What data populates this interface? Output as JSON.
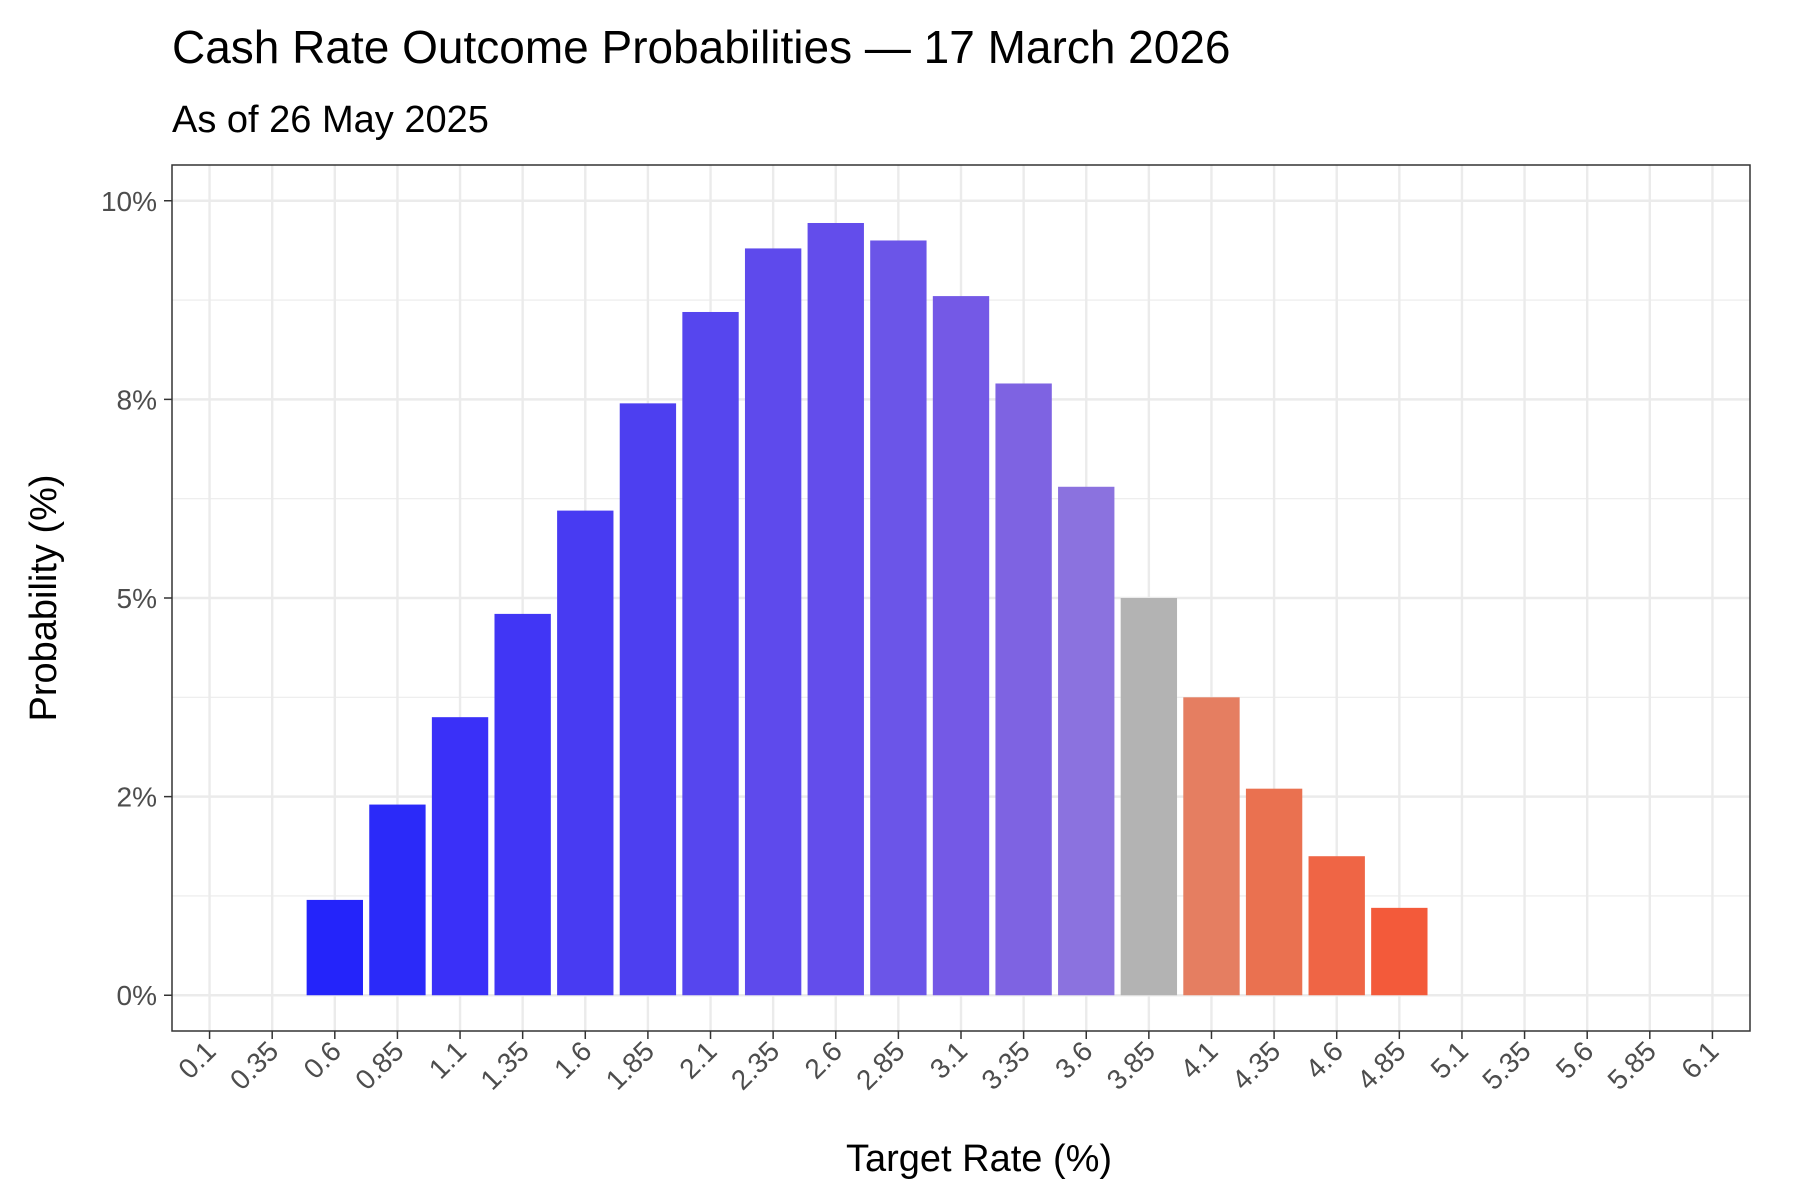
{
  "chart_data": {
    "type": "bar",
    "title": "Cash Rate Outcome Probabilities — 17 March 2026",
    "subtitle": "As of 26 May 2025",
    "xlabel": "Target Rate (%)",
    "ylabel": "Probability (%)",
    "categories": [
      "0.1",
      "0.35",
      "0.6",
      "0.85",
      "1.1",
      "1.35",
      "1.6",
      "1.85",
      "2.1",
      "2.35",
      "2.6",
      "2.85",
      "3.1",
      "3.35",
      "3.6",
      "3.85",
      "4.1",
      "4.35",
      "4.6",
      "4.85",
      "5.1",
      "5.35",
      "5.6",
      "5.85",
      "6.1"
    ],
    "values": [
      0,
      0,
      1.2,
      2.4,
      3.5,
      4.8,
      6.1,
      7.45,
      8.6,
      9.4,
      9.72,
      9.5,
      8.8,
      7.7,
      6.4,
      5.0,
      3.75,
      2.6,
      1.75,
      1.1,
      0,
      0,
      0,
      0,
      0
    ],
    "bar_colors": [
      "#2424fa",
      "#2424fa",
      "#2424fa",
      "#2b2af9",
      "#3a30f8",
      "#4136f5",
      "#483bf2",
      "#4d3ff0",
      "#5646ee",
      "#5e4aec",
      "#634deb",
      "#6b55e8",
      "#7459e6",
      "#7e63e2",
      "#8b72df",
      "#b3b3b3",
      "#e57e61",
      "#ea7150",
      "#ef6545",
      "#f35a3a",
      "#f35a3a",
      "#f35a3a",
      "#f35a3a",
      "#f35a3a",
      "#f35a3a"
    ],
    "ylim": [
      -0.45,
      10.45
    ],
    "y_ticks": [
      0,
      2.5,
      5,
      7.5,
      10
    ],
    "y_tick_labels": [
      "0%",
      "2%",
      "5%",
      "8%",
      "10%"
    ],
    "grid": true,
    "legend": "none"
  }
}
